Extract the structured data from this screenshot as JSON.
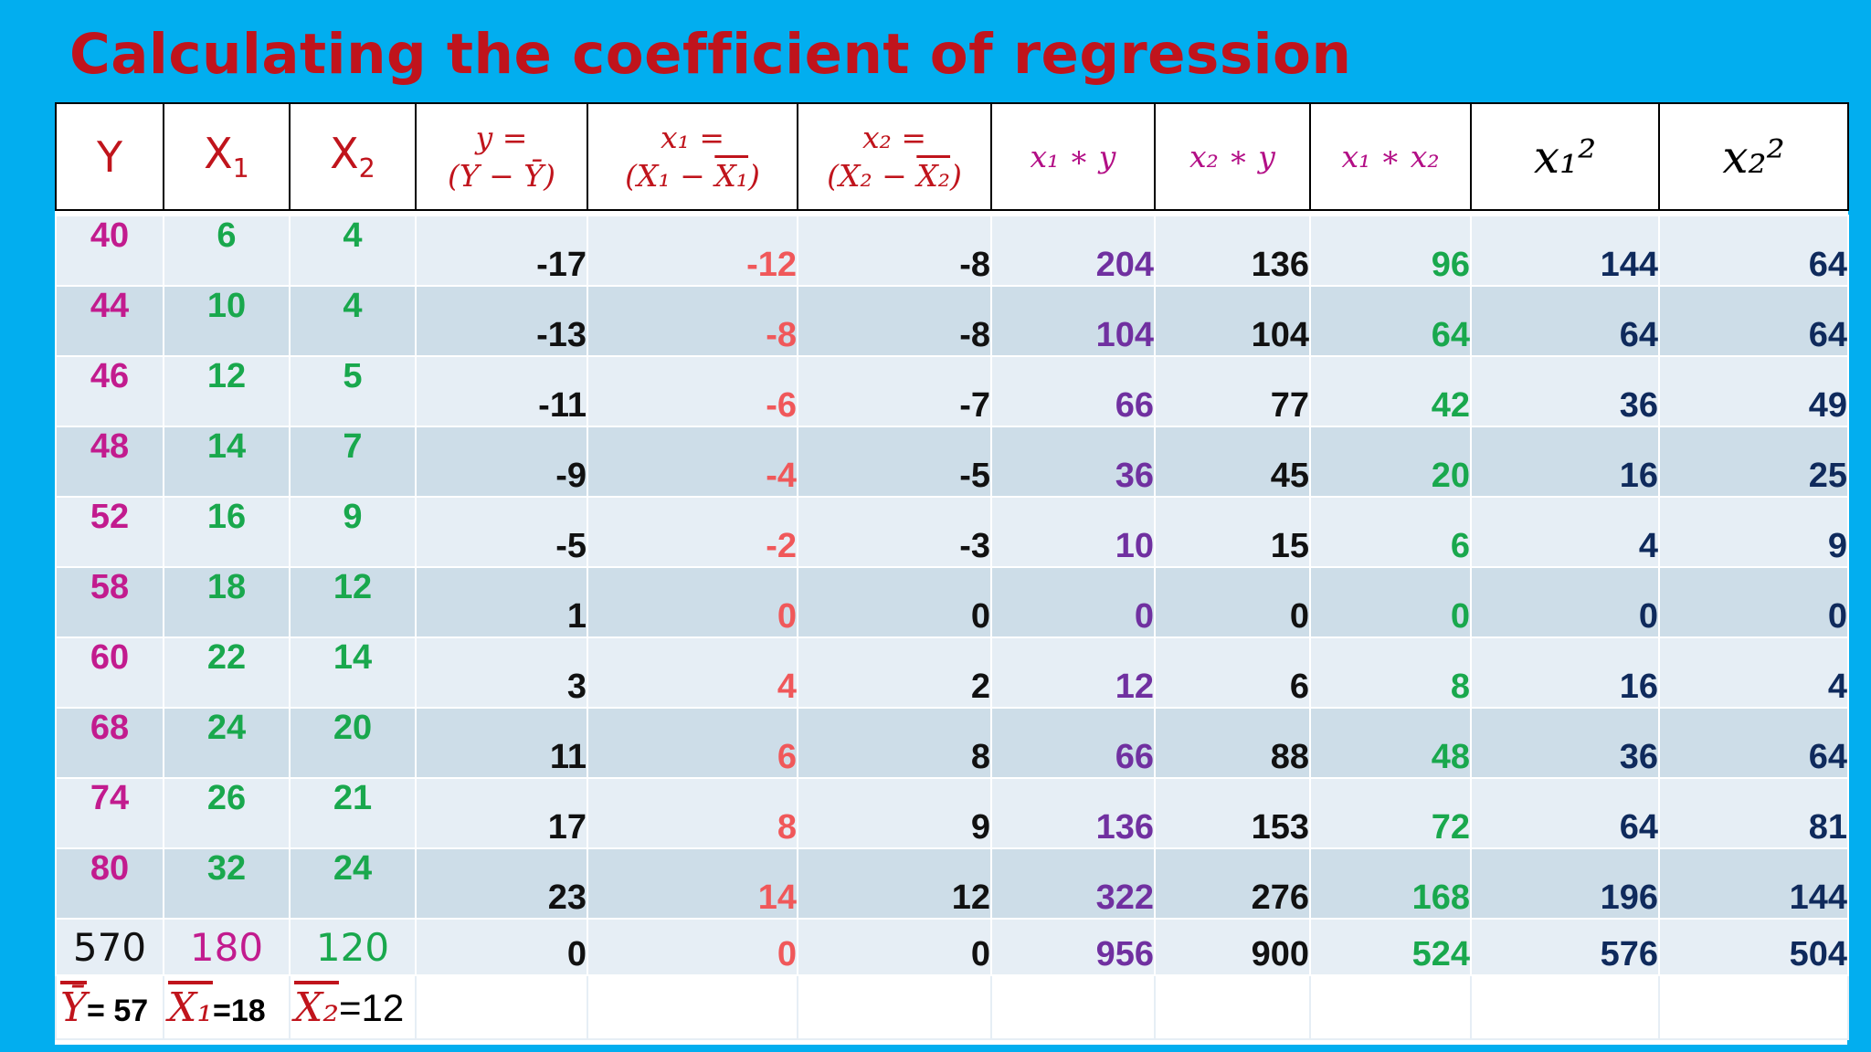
{
  "title": "Calculating the coefficient of regression",
  "header": {
    "y": "Y",
    "x1": "X",
    "x1_sub": "1",
    "x2": "X",
    "x2_sub": "2",
    "dev_y_top": "y =",
    "dev_y_bottom": "(Y − Ȳ)",
    "dev_x1_top": "x₁ =",
    "dev_x1_open": "(X₁ − ",
    "dev_x1_bar": "X₁",
    "dev_x1_close": ")",
    "dev_x2_top": "x₂ =",
    "dev_x2_open": "(X₂ − ",
    "dev_x2_bar": "X₂",
    "dev_x2_close": ")",
    "x1y": "x₁ ∗ y",
    "x2y": "x₂ ∗ y",
    "x1x2": "x₁ ∗ x₂",
    "x1sq": "x₁²",
    "x2sq": "x₂²"
  },
  "rows": [
    [
      "40",
      "6",
      "4",
      "-17",
      "-12",
      "-8",
      "204",
      "136",
      "96",
      "144",
      "64"
    ],
    [
      "44",
      "10",
      "4",
      "-13",
      "-8",
      "-8",
      "104",
      "104",
      "64",
      "64",
      "64"
    ],
    [
      "46",
      "12",
      "5",
      "-11",
      "-6",
      "-7",
      "66",
      "77",
      "42",
      "36",
      "49"
    ],
    [
      "48",
      "14",
      "7",
      "-9",
      "-4",
      "-5",
      "36",
      "45",
      "20",
      "16",
      "25"
    ],
    [
      "52",
      "16",
      "9",
      "-5",
      "-2",
      "-3",
      "10",
      "15",
      "6",
      "4",
      "9"
    ],
    [
      "58",
      "18",
      "12",
      "1",
      "0",
      "0",
      "0",
      "0",
      "0",
      "0",
      "0"
    ],
    [
      "60",
      "22",
      "14",
      "3",
      "4",
      "2",
      "12",
      "6",
      "8",
      "16",
      "4"
    ],
    [
      "68",
      "24",
      "20",
      "11",
      "6",
      "8",
      "66",
      "88",
      "48",
      "36",
      "64"
    ],
    [
      "74",
      "26",
      "21",
      "17",
      "8",
      "9",
      "136",
      "153",
      "72",
      "64",
      "81"
    ],
    [
      "80",
      "32",
      "24",
      "23",
      "14",
      "12",
      "322",
      "276",
      "168",
      "196",
      "144"
    ]
  ],
  "totals": [
    "570",
    "180",
    "120",
    "0",
    "0",
    "0",
    "956",
    "900",
    "524",
    "576",
    "504"
  ],
  "means": {
    "y_symbol": "Ȳ",
    "y_value": "= 57",
    "x1_symbol": "X₁",
    "x1_value": "=18",
    "x2_symbol": "X₂",
    "x2_value": "=12"
  },
  "colors": {
    "background": "#02aeef",
    "title": "#c0141c",
    "y_col": "#c21b8e",
    "x_cols": "#19a84d",
    "dev_x1": "#f0585a",
    "x1y": "#7030a0",
    "squares": "#0f2a5c"
  }
}
